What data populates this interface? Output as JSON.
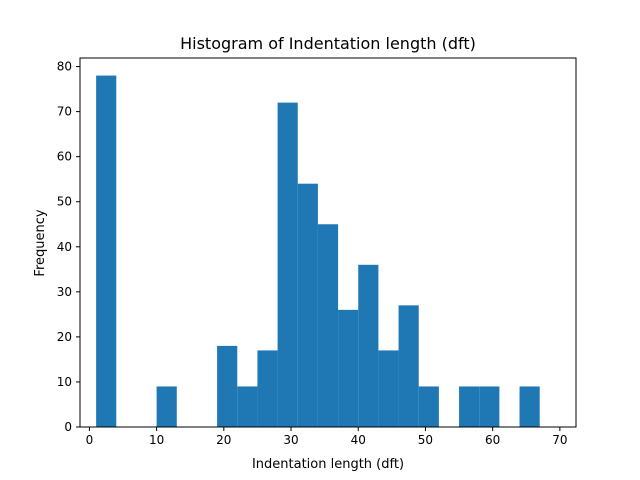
{
  "chart_data": {
    "type": "bar",
    "title": "Histogram of Indentation length (dft)",
    "xlabel": "Indentation length (dft)",
    "ylabel": "Frequency",
    "xlim": [
      -1.4,
      72.4
    ],
    "ylim": [
      0,
      81.9
    ],
    "xticks": [
      0,
      10,
      20,
      30,
      40,
      50,
      60,
      70
    ],
    "yticks": [
      0,
      10,
      20,
      30,
      40,
      50,
      60,
      70,
      80
    ],
    "grid": false,
    "bar_color": "#1f77b4",
    "bins": [
      {
        "x0": 1.0,
        "x1": 4.0,
        "value": 78
      },
      {
        "x0": 4.0,
        "x1": 7.0,
        "value": 0
      },
      {
        "x0": 7.0,
        "x1": 10.0,
        "value": 0
      },
      {
        "x0": 10.0,
        "x1": 13.0,
        "value": 9
      },
      {
        "x0": 13.0,
        "x1": 16.0,
        "value": 0
      },
      {
        "x0": 16.0,
        "x1": 19.0,
        "value": 0
      },
      {
        "x0": 19.0,
        "x1": 22.0,
        "value": 18
      },
      {
        "x0": 22.0,
        "x1": 25.0,
        "value": 9
      },
      {
        "x0": 25.0,
        "x1": 28.0,
        "value": 17
      },
      {
        "x0": 28.0,
        "x1": 31.0,
        "value": 72
      },
      {
        "x0": 31.0,
        "x1": 34.0,
        "value": 54
      },
      {
        "x0": 34.0,
        "x1": 37.0,
        "value": 45
      },
      {
        "x0": 37.0,
        "x1": 40.0,
        "value": 26
      },
      {
        "x0": 40.0,
        "x1": 43.0,
        "value": 36
      },
      {
        "x0": 43.0,
        "x1": 46.0,
        "value": 17
      },
      {
        "x0": 46.0,
        "x1": 49.0,
        "value": 27
      },
      {
        "x0": 49.0,
        "x1": 52.0,
        "value": 9
      },
      {
        "x0": 52.0,
        "x1": 55.0,
        "value": 0
      },
      {
        "x0": 55.0,
        "x1": 58.0,
        "value": 9
      },
      {
        "x0": 58.0,
        "x1": 61.0,
        "value": 9
      },
      {
        "x0": 61.0,
        "x1": 64.0,
        "value": 0
      },
      {
        "x0": 64.0,
        "x1": 67.0,
        "value": 9
      }
    ]
  }
}
